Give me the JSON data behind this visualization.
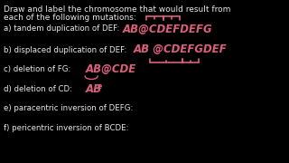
{
  "bg_color": "#000000",
  "text_color": "#e8e8e8",
  "pink_color": "#d9607a",
  "title_line1": "Draw and label the chromosome that would result from",
  "title_line2": "each of the following mutations:",
  "label_a": "a) tandem duplication of DEF: ",
  "answer_a": "AB@CDEFDEFG",
  "label_b": "b) displaced duplication of DEF: ",
  "answer_b": "AB @CDEFGDEF",
  "label_c": "c) deletion of FG: ",
  "answer_c": "AB@CDE",
  "label_d": "d) deletion of CD:  ",
  "answer_d1": "AB",
  "answer_d2": "e",
  "label_e": "e) paracentric inversion of DEFG:",
  "label_f": "f) pericentric inversion of BCDE:",
  "title_fs": 6.5,
  "label_fs": 6.2,
  "answer_fs": 8.5,
  "small_fs": 5.5
}
